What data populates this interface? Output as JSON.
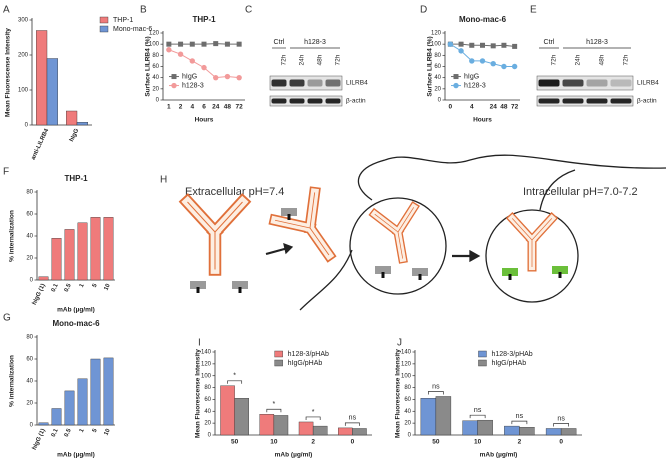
{
  "chart_data": [
    {
      "type": "bar",
      "panel": "A",
      "ylabel": "Mean Fluorescense Intensity",
      "categories": [
        "anti-LILRB4",
        "hIgG"
      ],
      "series": [
        {
          "name": "THP-1",
          "color": "#ef7b7b",
          "values": [
            270,
            40
          ]
        },
        {
          "name": "Mono-mac-6",
          "color": "#6f95d4",
          "values": [
            190,
            8
          ]
        }
      ],
      "ylim": [
        0,
        300
      ],
      "yticks": [
        0,
        100,
        200,
        300
      ],
      "legend": "right"
    },
    {
      "type": "line",
      "panel": "B",
      "title": "THP-1",
      "ylabel": "Surface LILRB4 (%)",
      "xlabel": "Hours",
      "categories": [
        "1",
        "2",
        "4",
        "6",
        "24",
        "48",
        "72"
      ],
      "series": [
        {
          "name": "hIgG",
          "color": "#6d6d6d",
          "marker": "square",
          "values": [
            100,
            100,
            100,
            100,
            101,
            100,
            100
          ]
        },
        {
          "name": "h128-3",
          "color": "#f29a9a",
          "marker": "circle",
          "values": [
            90,
            82,
            70,
            58,
            40,
            42,
            40
          ]
        }
      ],
      "ylim": [
        0,
        120
      ],
      "yticks": [
        0,
        20,
        40,
        60,
        80,
        100,
        120
      ],
      "legend": "lower left"
    },
    {
      "type": "line",
      "panel": "D",
      "title": "Mono-mac-6",
      "ylabel": "Surface LILRB4 (%)",
      "xlabel": "Hours",
      "categories": [
        "0",
        null,
        "4",
        null,
        "24",
        "48",
        "72"
      ],
      "series": [
        {
          "name": "hIgG",
          "color": "#6d6d6d",
          "marker": "square",
          "values": [
            100,
            100,
            98,
            98,
            97,
            98,
            96
          ]
        },
        {
          "name": "h128-3",
          "color": "#6aaee0",
          "marker": "circle",
          "values": [
            100,
            88,
            70,
            70,
            65,
            60,
            60
          ]
        }
      ],
      "ylim": [
        0,
        120
      ],
      "yticks": [
        0,
        20,
        40,
        60,
        80,
        100,
        120
      ],
      "legend": "lower left"
    },
    {
      "type": "bar",
      "panel": "F",
      "title": "THP-1",
      "ylabel": "% internalization",
      "xlabel": "mAb (µg/ml)",
      "categories": [
        "hIgG (1)",
        "0.1",
        "0.5",
        "1",
        "5",
        "10"
      ],
      "series": [
        {
          "color": "#ef7b7b",
          "values": [
            3,
            38,
            46,
            52,
            57,
            57
          ]
        }
      ],
      "ylim": [
        0,
        80
      ],
      "yticks": [
        0,
        20,
        40,
        60,
        80
      ]
    },
    {
      "type": "bar",
      "panel": "G",
      "title": "Mono-mac-6",
      "ylabel": "% internalization",
      "xlabel": "mAb (µg/ml)",
      "categories": [
        "hIgG (1)",
        "0.1",
        "0.5",
        "1",
        "5",
        "10"
      ],
      "series": [
        {
          "color": "#6f95d4",
          "values": [
            2,
            15,
            31,
            42,
            60,
            61
          ]
        }
      ],
      "ylim": [
        0,
        80
      ],
      "yticks": [
        0,
        20,
        40,
        60,
        80
      ]
    },
    {
      "type": "bar",
      "panel": "I",
      "ylabel": "Mean Fluorescense Intensity",
      "xlabel": "mAb (µg/ml)",
      "categories": [
        "50",
        "10",
        "2",
        "0"
      ],
      "series": [
        {
          "name": "h128-3/pHAb",
          "color": "#ef7b7b",
          "values": [
            83,
            35,
            22,
            12
          ]
        },
        {
          "name": "hIgG/pHAb",
          "color": "#8a8a8a",
          "values": [
            62,
            33,
            15,
            11
          ]
        }
      ],
      "annotations": [
        "*",
        "*",
        "*",
        "ns"
      ],
      "ylim": [
        0,
        140
      ],
      "yticks": [
        0,
        20,
        40,
        60,
        80,
        100,
        120,
        140
      ],
      "legend": "upper right"
    },
    {
      "type": "bar",
      "panel": "J",
      "ylabel": "Mean Fluorescense Intensity",
      "xlabel": "mAb (µg/ml)",
      "categories": [
        "50",
        "10",
        "2",
        "0"
      ],
      "series": [
        {
          "name": "h128-3/pHAb",
          "color": "#6f95d4",
          "values": [
            62,
            24,
            15,
            11
          ]
        },
        {
          "name": "hIgG/pHAb",
          "color": "#8a8a8a",
          "values": [
            65,
            25,
            13,
            11
          ]
        }
      ],
      "annotations": [
        "ns",
        "ns",
        "ns",
        "ns"
      ],
      "ylim": [
        0,
        140
      ],
      "yticks": [
        0,
        20,
        40,
        60,
        80,
        100,
        120,
        140
      ],
      "legend": "upper right"
    }
  ],
  "blots": [
    {
      "panel": "C",
      "ctrl": "Ctrl",
      "treatment": "h128-3",
      "lanes": [
        "72h",
        "24h",
        "48h",
        "72h"
      ],
      "bands": [
        "LILRB4",
        "β-actin"
      ]
    },
    {
      "panel": "E",
      "ctrl": "Ctrl",
      "treatment": "h128-3",
      "lanes": [
        "72h",
        "24h",
        "48h",
        "72h"
      ],
      "bands": [
        "LILRB4",
        "β-actin"
      ]
    }
  ],
  "diagram": {
    "panel": "H",
    "left": "Extracellular pH=7.4",
    "right": "Intracellular pH=7.0-7.2"
  }
}
